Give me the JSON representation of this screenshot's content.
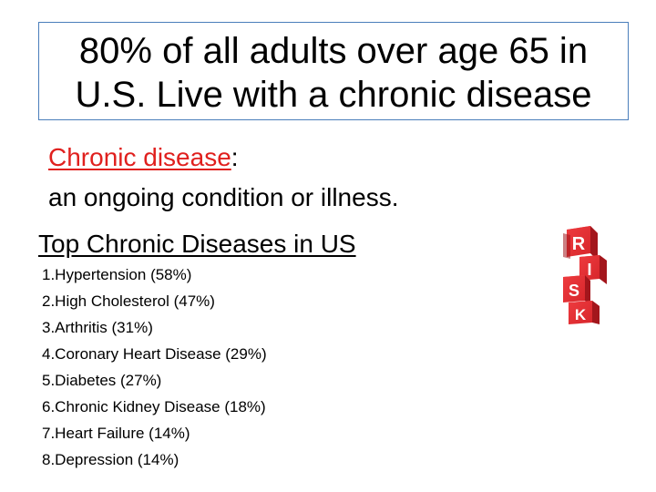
{
  "title": {
    "line1": "80% of all adults over age 65 in",
    "line2": "U.S. Live with a chronic disease"
  },
  "definition": {
    "term": "Chronic disease",
    "separator": ":",
    "text": "an ongoing condition or illness."
  },
  "list_heading": "Top Chronic Diseases in US",
  "diseases": [
    "1.Hypertension (58%)",
    "2.High Cholesterol (47%)",
    "3.Arthritis (31%)",
    "4.Coronary Heart Disease (29%)",
    "5.Diabetes (27%)",
    "6.Chronic Kidney Disease (18%)",
    "7.Heart Failure (14%)",
    "8.Depression (14%)"
  ],
  "risk_image": {
    "letters": [
      "R",
      "I",
      "S",
      "K"
    ],
    "colors": {
      "cube_face": "#d7262b",
      "cube_side": "#a3161c",
      "cube_top": "#ee5a5c",
      "letter": "#ffffff"
    }
  }
}
